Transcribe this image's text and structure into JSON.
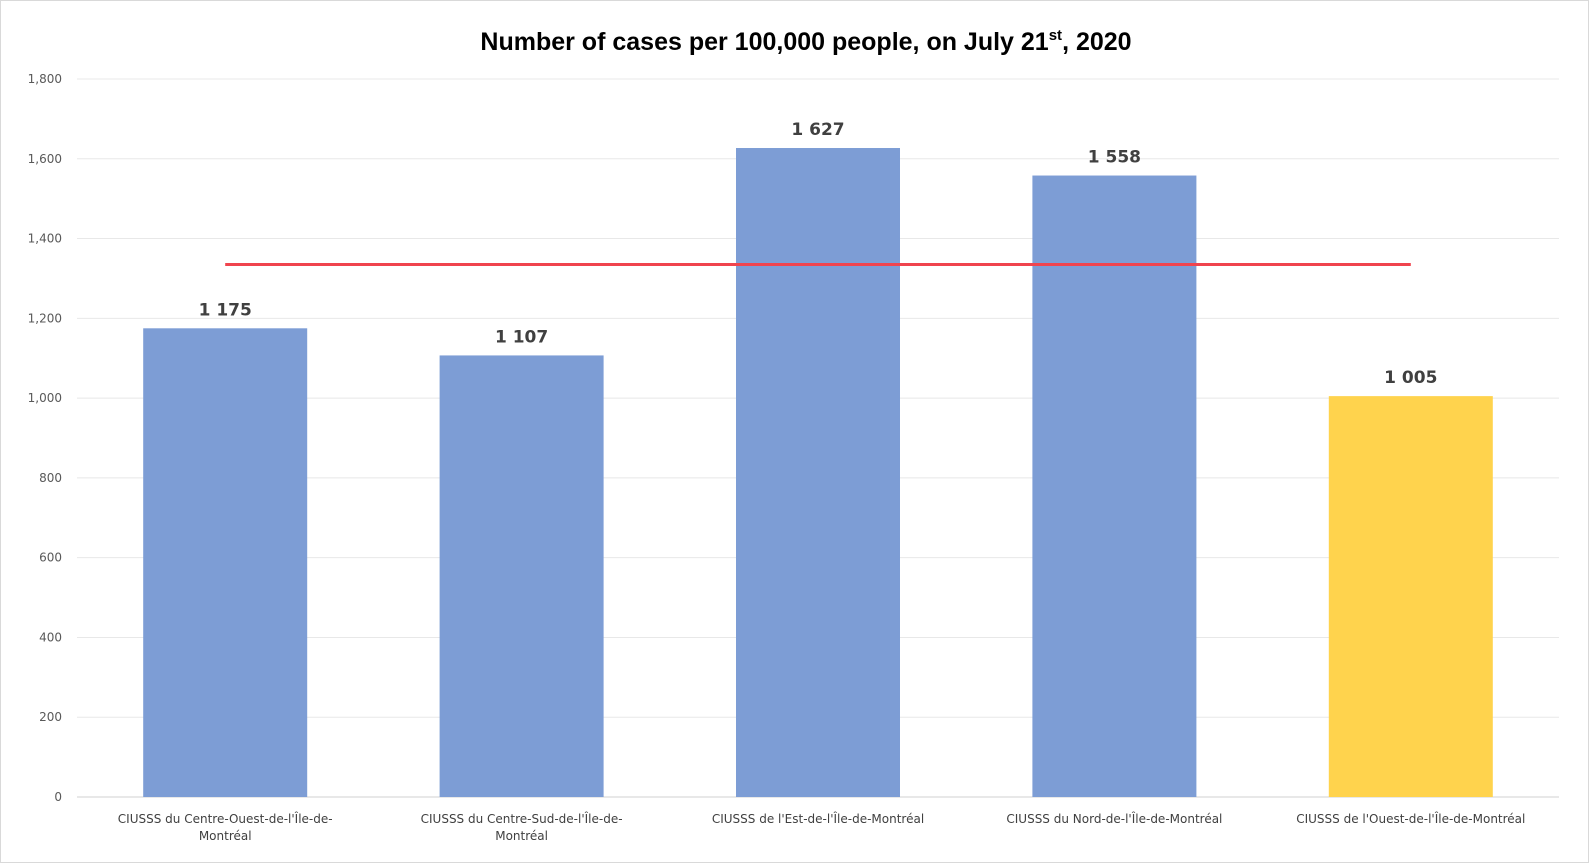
{
  "chart_data": {
    "type": "bar",
    "title": {
      "main": "Number of cases per 100,000 people, on July 21",
      "superscript": "st",
      "suffix": ", 2020"
    },
    "xlabel": "",
    "ylabel": "",
    "ylim": [
      0,
      1800
    ],
    "yticks": [
      0,
      200,
      400,
      600,
      800,
      1000,
      1200,
      1400,
      1600,
      1800
    ],
    "ytick_labels": [
      "0",
      "200",
      "400",
      "600",
      "800",
      "1,000",
      "1,200",
      "1,400",
      "1,600",
      "1,800"
    ],
    "grid": true,
    "legend": "none",
    "categories": [
      [
        "CIUSSS du Centre-Ouest-de-l'Île-de-",
        "Montréal"
      ],
      [
        "CIUSSS du Centre-Sud-de-l'Île-de-",
        "Montréal"
      ],
      [
        "CIUSSS de l'Est-de-l'Île-de-Montréal"
      ],
      [
        "CIUSSS du Nord-de-l'Île-de-Montréal"
      ],
      [
        "CIUSSS de l'Ouest-de-l'Île-de-Montréal"
      ]
    ],
    "values": [
      1175,
      1107,
      1627,
      1558,
      1005
    ],
    "data_labels": [
      "1 175",
      "1 107",
      "1 627",
      "1 558",
      "1 005"
    ],
    "bar_colors": [
      "#7d9dd5",
      "#7d9dd5",
      "#7d9dd5",
      "#7d9dd5",
      "#ffd34d"
    ],
    "reference_line": {
      "value": 1335,
      "color": "#f0444e"
    },
    "colors": {
      "grid": "#e8e8e8",
      "axis": "#d0d0d0"
    }
  }
}
